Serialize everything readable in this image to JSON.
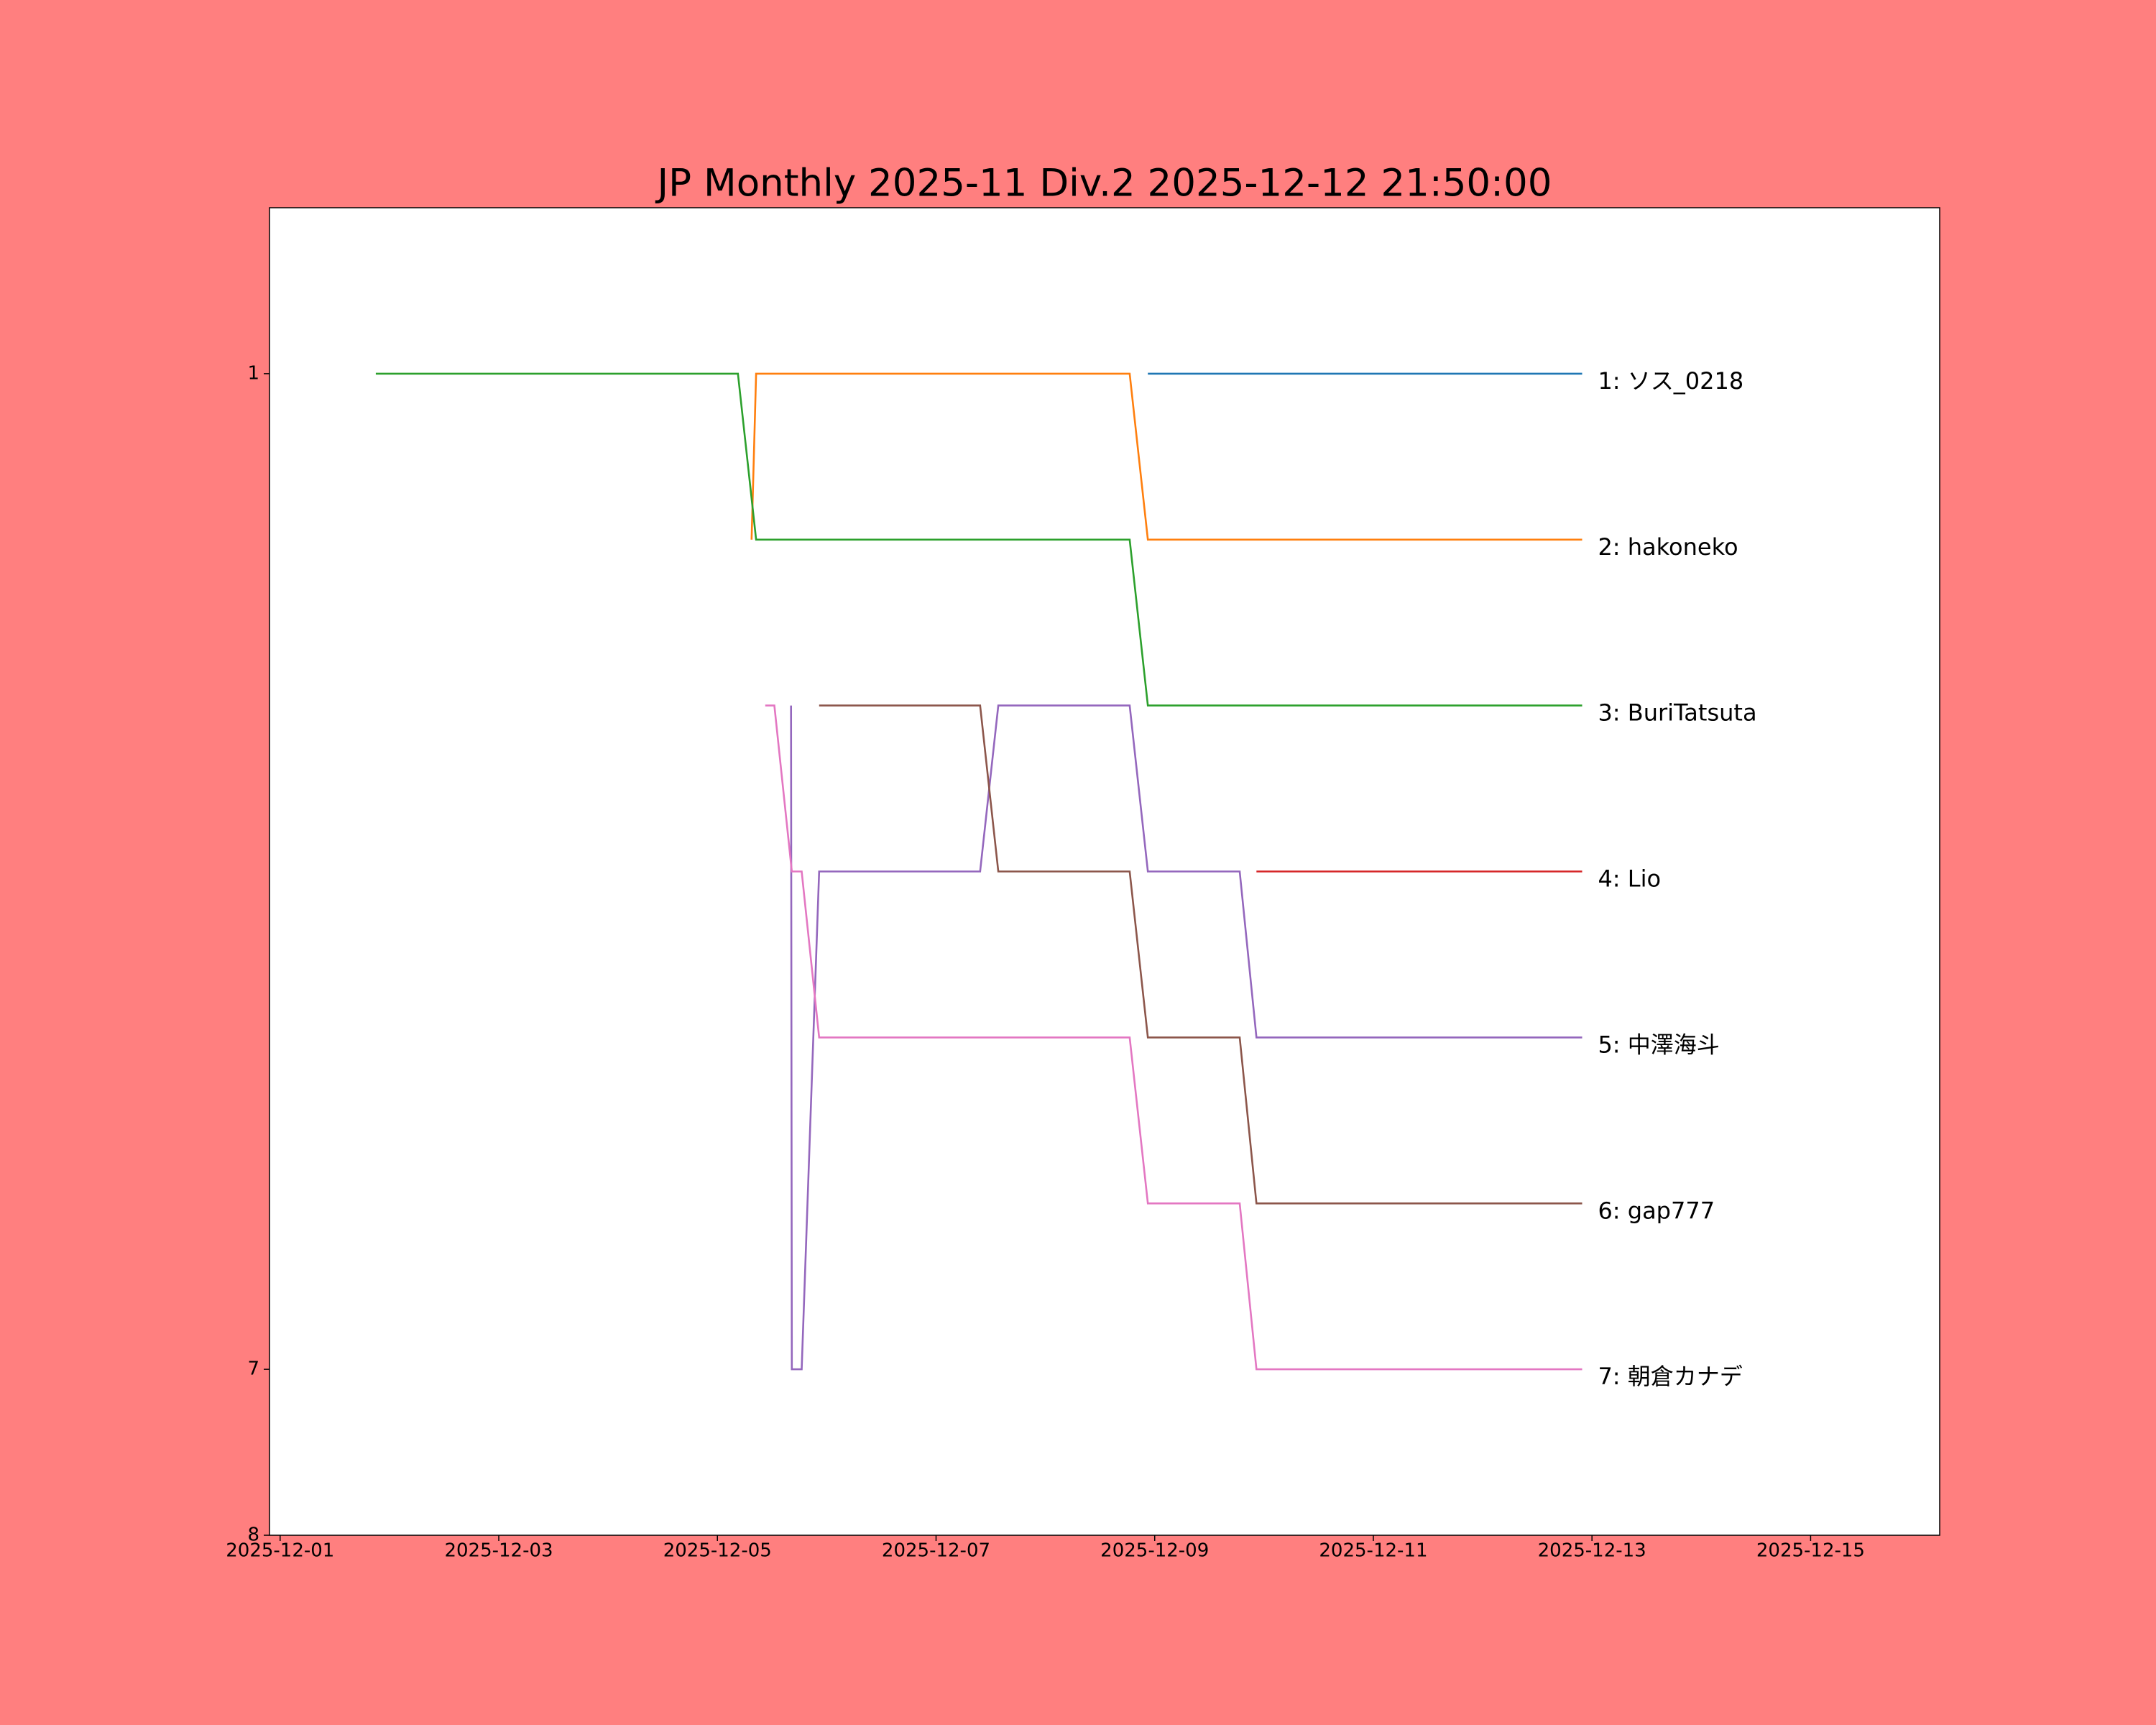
{
  "chart_data": {
    "type": "line",
    "title": "JP Monthly 2025-11 Div.2 2025-12-12 21:50:00",
    "xlim": [
      "2025-11-30 21:40",
      "2025-12-16 04:20"
    ],
    "xticks": [
      "2025-12-01",
      "2025-12-03",
      "2025-12-05",
      "2025-12-07",
      "2025-12-09",
      "2025-12-11",
      "2025-12-13",
      "2025-12-15"
    ],
    "ylim": [
      8,
      0
    ],
    "yticks": [
      1,
      7,
      8
    ],
    "grid": false,
    "series": [
      {
        "name": "1: ソス_0218",
        "color": "#1f77b4",
        "x": [
          "2025-12-08 22:30",
          "2025-12-12 21:50"
        ],
        "values": [
          1,
          1
        ]
      },
      {
        "name": "2: hakoneko",
        "color": "#ff7f0e",
        "x": [
          "2025-12-05 07:30",
          "2025-12-05 08:30",
          "2025-12-08 18:30",
          "2025-12-08 22:30",
          "2025-12-12 21:50"
        ],
        "values": [
          2,
          1,
          1,
          2,
          2
        ]
      },
      {
        "name": "3: BuriTatsuta",
        "color": "#2ca02c",
        "x": [
          "2025-12-01 21:00",
          "2025-12-05 04:30",
          "2025-12-05 08:30",
          "2025-12-08 18:30",
          "2025-12-08 22:30",
          "2025-12-12 21:50"
        ],
        "values": [
          1,
          1,
          2,
          2,
          3,
          3
        ]
      },
      {
        "name": "4: Lio",
        "color": "#d62728",
        "x": [
          "2025-12-09 22:20",
          "2025-12-12 21:50"
        ],
        "values": [
          4,
          4
        ]
      },
      {
        "name": "5: 中澤海斗",
        "color": "#9467bd",
        "x": [
          "2025-12-05 16:10",
          "2025-12-05 16:20",
          "2025-12-05 18:30",
          "2025-12-05 22:20",
          "2025-12-07 09:40",
          "2025-12-07 13:40",
          "2025-12-08 18:30",
          "2025-12-08 22:30",
          "2025-12-09 18:40",
          "2025-12-09 22:20",
          "2025-12-12 21:50"
        ],
        "values": [
          3,
          7,
          7,
          4,
          4,
          3,
          3,
          4,
          4,
          5,
          5
        ]
      },
      {
        "name": "6: gap777",
        "color": "#8c564b",
        "x": [
          "2025-12-05 22:20",
          "2025-12-07 09:40",
          "2025-12-07 13:40",
          "2025-12-08 18:30",
          "2025-12-08 22:30",
          "2025-12-09 18:40",
          "2025-12-09 22:20",
          "2025-12-12 21:50"
        ],
        "values": [
          3,
          3,
          4,
          4,
          5,
          5,
          6,
          6
        ]
      },
      {
        "name": "7: 朝倉カナデ",
        "color": "#e377c2",
        "x": [
          "2025-12-05 10:30",
          "2025-12-05 12:30",
          "2025-12-05 16:20",
          "2025-12-05 18:30",
          "2025-12-05 22:20",
          "2025-12-08 18:30",
          "2025-12-08 22:30",
          "2025-12-09 18:40",
          "2025-12-09 22:20",
          "2025-12-12 21:50"
        ],
        "values": [
          3,
          3,
          4,
          4,
          5,
          5,
          6,
          6,
          7,
          7
        ]
      }
    ]
  }
}
